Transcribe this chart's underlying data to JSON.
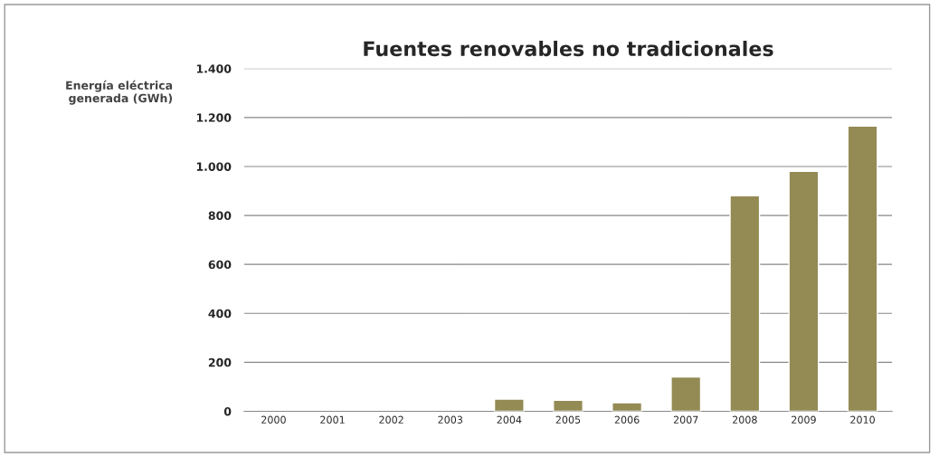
{
  "chart_data": {
    "type": "bar",
    "title": "Fuentes renovables no tradicionales",
    "ylabel": "Energía eléctrica\ngenerada (GWh)",
    "categories": [
      "2000",
      "2001",
      "2002",
      "2003",
      "2004",
      "2005",
      "2006",
      "2007",
      "2008",
      "2009",
      "2010"
    ],
    "values": [
      null,
      null,
      null,
      null,
      50,
      45,
      35,
      140,
      880,
      980,
      1165
    ],
    "color": "#948a54",
    "ylim": [
      0,
      1400
    ],
    "yticks": [
      0,
      200,
      400,
      600,
      800,
      {
        "value": 1000,
        "label": "1.000"
      },
      {
        "value": 1200,
        "label": "1.200"
      },
      {
        "value": 1400,
        "label": "1.400"
      }
    ],
    "grid": "y",
    "legend": false
  }
}
